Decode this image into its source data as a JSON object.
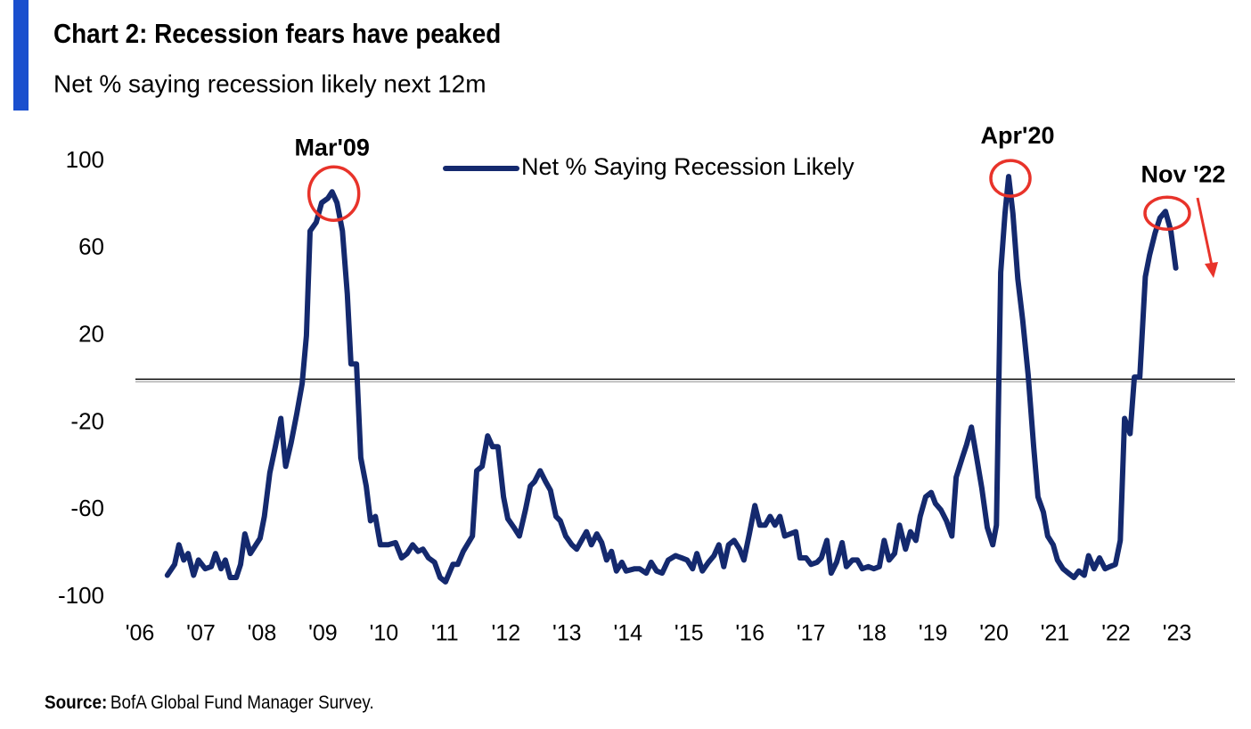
{
  "chart_data": {
    "type": "line",
    "title": "Chart 2: Recession fears have peaked",
    "subtitle": "Net % saying recession likely next 12m",
    "source_label": "Source:",
    "source": "BofA Global Fund Manager Survey.",
    "legend": "top-center",
    "reference_line": 0,
    "xlim": [
      2006,
      2024
    ],
    "xticks": [
      {
        "value": 2006,
        "label": "'06"
      },
      {
        "value": 2007,
        "label": "'07"
      },
      {
        "value": 2008,
        "label": "'08"
      },
      {
        "value": 2009,
        "label": "'09"
      },
      {
        "value": 2010,
        "label": "'10"
      },
      {
        "value": 2011,
        "label": "'11"
      },
      {
        "value": 2012,
        "label": "'12"
      },
      {
        "value": 2013,
        "label": "'13"
      },
      {
        "value": 2014,
        "label": "'14"
      },
      {
        "value": 2015,
        "label": "'15"
      },
      {
        "value": 2016,
        "label": "'16"
      },
      {
        "value": 2017,
        "label": "'17"
      },
      {
        "value": 2018,
        "label": "'18"
      },
      {
        "value": 2019,
        "label": "'19"
      },
      {
        "value": 2020,
        "label": "'20"
      },
      {
        "value": 2021,
        "label": "'21"
      },
      {
        "value": 2022,
        "label": "'22"
      },
      {
        "value": 2023,
        "label": "'23"
      }
    ],
    "ylim": [
      -100,
      100
    ],
    "yticks": [
      -100,
      -60,
      -20,
      20,
      60,
      100
    ],
    "annotations": [
      {
        "text": "Mar'09",
        "x": 2009.15,
        "y": 86
      },
      {
        "text": "Apr'20",
        "x": 2020.24,
        "y": 93
      },
      {
        "text": "Nov '22",
        "x": 2022.81,
        "y": 77
      }
    ],
    "annotation_color": "#e8332a",
    "x": [
      2006.45,
      2006.57,
      2006.64,
      2006.72,
      2006.79,
      2006.88,
      2006.96,
      2007.07,
      2007.17,
      2007.24,
      2007.33,
      2007.4,
      2007.48,
      2007.58,
      2007.65,
      2007.72,
      2007.81,
      2007.97,
      2008.04,
      2008.13,
      2008.22,
      2008.31,
      2008.39,
      2008.48,
      2008.57,
      2008.66,
      2008.73,
      2008.79,
      2008.89,
      2008.98,
      2009.08,
      2009.15,
      2009.23,
      2009.32,
      2009.4,
      2009.46,
      2009.55,
      2009.62,
      2009.71,
      2009.78,
      2009.86,
      2009.94,
      2010.07,
      2010.19,
      2010.29,
      2010.38,
      2010.47,
      2010.56,
      2010.64,
      2010.73,
      2010.83,
      2010.92,
      2011.01,
      2011.13,
      2011.21,
      2011.3,
      2011.45,
      2011.52,
      2011.61,
      2011.7,
      2011.78,
      2011.87,
      2011.96,
      2012.03,
      2012.13,
      2012.22,
      2012.32,
      2012.4,
      2012.47,
      2012.56,
      2012.65,
      2012.73,
      2012.82,
      2012.89,
      2012.98,
      2013.08,
      2013.16,
      2013.24,
      2013.32,
      2013.4,
      2013.49,
      2013.57,
      2013.65,
      2013.73,
      2013.81,
      2013.9,
      2013.97,
      2014.11,
      2014.19,
      2014.3,
      2014.38,
      2014.47,
      2014.56,
      2014.66,
      2014.78,
      2014.88,
      2014.97,
      2015.06,
      2015.13,
      2015.22,
      2015.32,
      2015.41,
      2015.49,
      2015.57,
      2015.65,
      2015.74,
      2015.83,
      2015.9,
      2015.99,
      2016.08,
      2016.16,
      2016.25,
      2016.33,
      2016.41,
      2016.49,
      2016.57,
      2016.66,
      2016.75,
      2016.82,
      2016.92,
      2017.0,
      2017.1,
      2017.17,
      2017.26,
      2017.33,
      2017.42,
      2017.51,
      2017.58,
      2017.68,
      2017.76,
      2017.84,
      2017.94,
      2018.03,
      2018.12,
      2018.2,
      2018.28,
      2018.37,
      2018.45,
      2018.55,
      2018.63,
      2018.72,
      2018.79,
      2018.88,
      2018.97,
      2019.04,
      2019.13,
      2019.22,
      2019.31,
      2019.38,
      2019.48,
      2019.55,
      2019.63,
      2019.71,
      2019.8,
      2019.89,
      2019.98,
      2020.04,
      2020.11,
      2020.18,
      2020.24,
      2020.31,
      2020.39,
      2020.47,
      2020.56,
      2020.65,
      2020.72,
      2020.81,
      2020.88,
      2020.97,
      2021.04,
      2021.13,
      2021.22,
      2021.31,
      2021.39,
      2021.48,
      2021.55,
      2021.64,
      2021.73,
      2021.82,
      2021.9,
      2021.99,
      2022.07,
      2022.14,
      2022.23,
      2022.3,
      2022.39,
      2022.48,
      2022.55,
      2022.64,
      2022.72,
      2022.81,
      2022.9,
      2022.98
    ],
    "series": [
      {
        "name": "Net % Saying Recession Likely",
        "color": "#14296e",
        "values": [
          -90,
          -85,
          -76,
          -83,
          -80,
          -90,
          -83,
          -87,
          -86,
          -80,
          -87,
          -83,
          -91,
          -91,
          -85,
          -71,
          -80,
          -73,
          -63,
          -43,
          -31,
          -18,
          -40,
          -29,
          -16,
          -2,
          20,
          68,
          72,
          81,
          83,
          86,
          81,
          68,
          39,
          7,
          7,
          -36,
          -49,
          -65,
          -63,
          -76,
          -76,
          -75,
          -82,
          -80,
          -76,
          -79,
          -78,
          -82,
          -84,
          -91,
          -93,
          -85,
          -85,
          -79,
          -72,
          -42,
          -40,
          -26,
          -31,
          -31,
          -54,
          -64,
          -68,
          -72,
          -60,
          -49,
          -47,
          -42,
          -47,
          -51,
          -63,
          -65,
          -72,
          -76,
          -78,
          -74,
          -70,
          -76,
          -71,
          -75,
          -83,
          -79,
          -88,
          -84,
          -88,
          -87,
          -87,
          -89,
          -84,
          -88,
          -89,
          -83,
          -81,
          -82,
          -83,
          -87,
          -80,
          -88,
          -84,
          -81,
          -76,
          -86,
          -76,
          -74,
          -78,
          -83,
          -71,
          -58,
          -67,
          -67,
          -63,
          -67,
          -63,
          -72,
          -71,
          -70,
          -82,
          -82,
          -85,
          -84,
          -82,
          -74,
          -89,
          -84,
          -75,
          -86,
          -83,
          -83,
          -87,
          -86,
          -87,
          -86,
          -74,
          -83,
          -80,
          -67,
          -78,
          -70,
          -74,
          -63,
          -54,
          -52,
          -57,
          -60,
          -65,
          -72,
          -45,
          -36,
          -30,
          -22,
          -35,
          -50,
          -68,
          -76,
          -67,
          49,
          76,
          93,
          76,
          46,
          27,
          2,
          -31,
          -54,
          -61,
          -72,
          -76,
          -83,
          -87,
          -89,
          -91,
          -88,
          -90,
          -81,
          -87,
          -82,
          -87,
          -86,
          -85,
          -74,
          -18,
          -25,
          1,
          1,
          47,
          57,
          67,
          74,
          77,
          68,
          51
        ]
      }
    ]
  }
}
